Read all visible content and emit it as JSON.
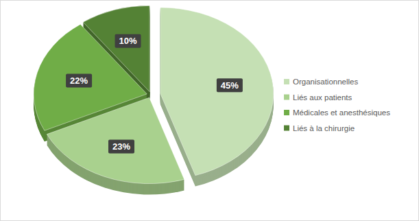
{
  "chart_data": {
    "type": "pie",
    "categories": [
      "Organisationnelles",
      "Liés aux patients",
      "Médicales et anesthésiques",
      "Liés à la chirurgie"
    ],
    "values": [
      45,
      23,
      22,
      10
    ],
    "value_labels": [
      "45%",
      "23%",
      "22%",
      "10%"
    ],
    "colors": [
      "#c5e0b4",
      "#a9d18e",
      "#70ad47",
      "#548235"
    ],
    "data_labels": true,
    "legend": "right"
  }
}
